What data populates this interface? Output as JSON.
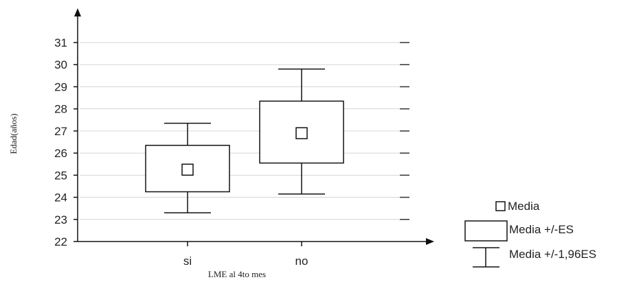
{
  "chart_data": {
    "type": "boxplot",
    "xlabel": "LME al 4to mes",
    "ylabel": "Edad(años)",
    "ylim": [
      22,
      31
    ],
    "yticks": [
      22,
      23,
      24,
      25,
      26,
      27,
      28,
      29,
      30,
      31
    ],
    "grid": true,
    "categories": [
      "si",
      "no"
    ],
    "series": [
      {
        "category": "si",
        "mean": 25.25,
        "se_low": 24.25,
        "se_high": 26.35,
        "ci_low": 23.3,
        "ci_high": 27.35
      },
      {
        "category": "no",
        "mean": 26.9,
        "se_low": 25.55,
        "se_high": 28.35,
        "ci_low": 24.15,
        "ci_high": 29.8
      }
    ],
    "legend": {
      "position": "bottom-right",
      "entries": [
        "Media",
        "Media +/-ES",
        "Media +/-1,96ES"
      ]
    }
  }
}
